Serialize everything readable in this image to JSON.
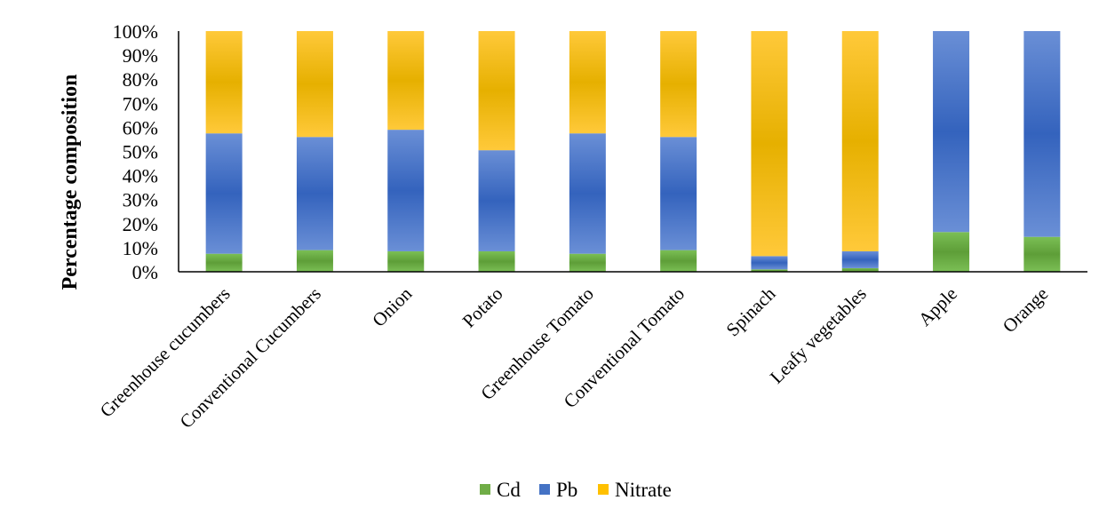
{
  "chart_data": {
    "type": "bar",
    "stacked": true,
    "percent_stacked": true,
    "title": "",
    "xlabel": "",
    "ylabel": "Percentage composition",
    "ylim": [
      0,
      100
    ],
    "yticks": [
      "0%",
      "10%",
      "20%",
      "30%",
      "40%",
      "50%",
      "60%",
      "70%",
      "80%",
      "90%",
      "100%"
    ],
    "categories": [
      "Greenhouse cucumbers",
      "Conventional Cucumbers",
      "Onion",
      "Potato",
      "Greenhouse Tomato",
      "Conventional Tomato",
      "Spinach",
      "Leafy vegetables",
      "Apple",
      "Orange"
    ],
    "series": [
      {
        "name": "Cd",
        "color": "#70ad47",
        "values": [
          7.5,
          9,
          8.5,
          8.5,
          7.5,
          9,
          1,
          1.5,
          16.5,
          14.5
        ]
      },
      {
        "name": "Pb",
        "color": "#4472c4",
        "values": [
          50,
          47,
          50.5,
          42,
          50,
          47,
          5.5,
          7,
          83.5,
          85.5
        ]
      },
      {
        "name": "Nitrate",
        "color": "#ffc000",
        "values": [
          42.5,
          44,
          41,
          49.5,
          42.5,
          44,
          93.5,
          91.5,
          0,
          0
        ]
      }
    ],
    "legend": {
      "position": "bottom"
    },
    "grid": false
  }
}
